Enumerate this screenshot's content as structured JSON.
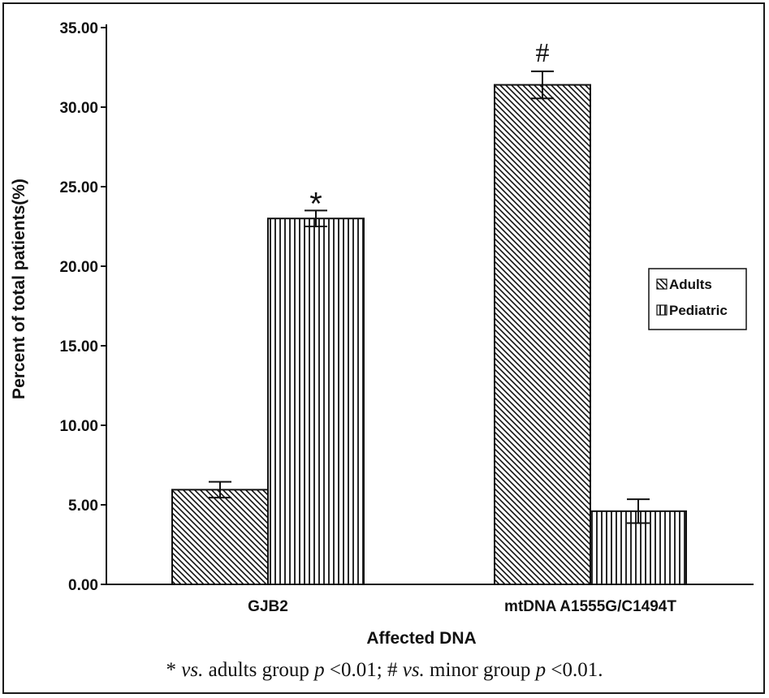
{
  "chart_data": {
    "type": "bar",
    "title": "",
    "xlabel": "Affected DNA",
    "ylabel": "Percent of total patients(%)",
    "ylim": [
      0,
      35
    ],
    "yticks": [
      "0.00",
      "5.00",
      "10.00",
      "15.00",
      "20.00",
      "25.00",
      "30.00",
      "35.00"
    ],
    "categories": [
      "GJB2",
      "mtDNA A1555G/C1494T"
    ],
    "series": [
      {
        "name": "Adults",
        "pattern": "diagonal",
        "values": [
          5.95,
          31.4
        ],
        "errors": [
          0.5,
          0.85
        ]
      },
      {
        "name": "Pediatric",
        "pattern": "vertical",
        "values": [
          23.0,
          4.6
        ],
        "errors": [
          0.5,
          0.75
        ]
      }
    ],
    "annotations": [
      {
        "category": 0,
        "series": 1,
        "text": "*"
      },
      {
        "category": 1,
        "series": 0,
        "text": "#"
      }
    ],
    "legend_position": "right"
  },
  "footnote": {
    "p1": "* ",
    "vs1": "vs.",
    "p2": " adults group ",
    "p_var1": "p",
    "p3": " <0.01; # ",
    "vs2": "vs.",
    "p4": " minor group ",
    "p_var2": "p",
    "p5": " <0.01."
  }
}
